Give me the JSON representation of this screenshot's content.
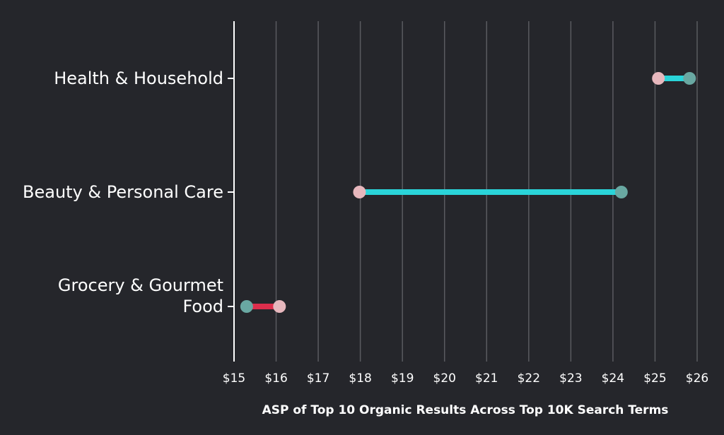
{
  "chart_data": {
    "type": "dumbbell",
    "title": "",
    "xlabel": "ASP of Top 10 Organic Results Across Top 10K Search Terms",
    "ylabel": "",
    "xlim": [
      15,
      26
    ],
    "xticks": [
      "$15",
      "$16",
      "$17",
      "$18",
      "$19",
      "$20",
      "$21",
      "$22",
      "$23",
      "$24",
      "$25",
      "$26"
    ],
    "grid": true,
    "colors": {
      "background": "#25262b",
      "grid": "#5a5b60",
      "axis": "#ffffff",
      "start_point": "#e7b7bd",
      "end_point": "#69a8a2",
      "increase_bar": "#2ad4d9",
      "decrease_bar": "#dd2e4c"
    },
    "categories": [
      {
        "label_lines": [
          "Health & Household"
        ],
        "start": 25.08,
        "end": 25.82
      },
      {
        "label_lines": [
          "Beauty & Personal Care"
        ],
        "start": 17.98,
        "end": 24.2
      },
      {
        "label_lines": [
          "Grocery & Gourmet",
          "Food"
        ],
        "start": 16.08,
        "end": 15.3
      }
    ]
  }
}
